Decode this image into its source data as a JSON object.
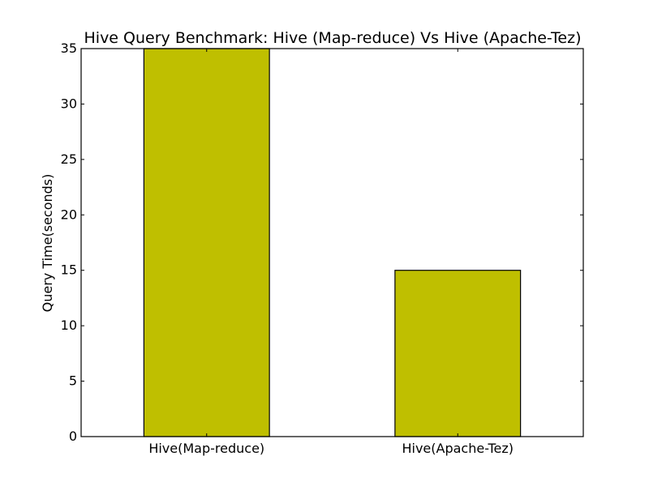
{
  "chart_data": {
    "type": "bar",
    "title": "Hive Query Benchmark: Hive (Map-reduce) Vs Hive (Apache-Tez)",
    "xlabel": "",
    "ylabel": "Query Time(seconds)",
    "categories": [
      "Hive(Map-reduce)",
      "Hive(Apache-Tez)"
    ],
    "values": [
      35,
      15
    ],
    "ylim": [
      0,
      35
    ],
    "yticks": [
      0,
      5,
      10,
      15,
      20,
      25,
      30,
      35
    ],
    "bar_color": "#bfbf00",
    "grid": false,
    "legend": "none"
  }
}
